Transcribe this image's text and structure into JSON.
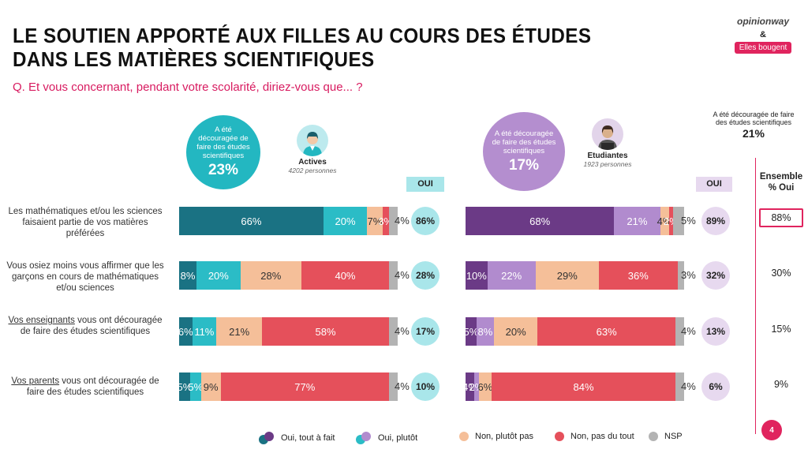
{
  "header": {
    "title": "LE SOUTIEN APPORTÉ AUX FILLES AU COURS DES ÉTUDES DANS LES MATIÈRES SCIENTIFIQUES",
    "question": "Q. Et vous concernant, pendant votre scolarité, diriez-vous que... ?",
    "brand_top": "opinionway",
    "brand_amp": "&",
    "brand_bottom": "Elles bougent",
    "page_number": "4"
  },
  "groups": {
    "actives": {
      "bubble_text": "A été découragée de faire des études scientifiques",
      "bubble_pct": "23%",
      "label": "Actives",
      "count": "4202 personnes",
      "oui_header": "OUI"
    },
    "etudiantes": {
      "bubble_text": "A été découragée de faire des études scientifiques",
      "bubble_pct": "17%",
      "label": "Etudiantes",
      "count": "1923 personnes",
      "oui_header": "OUI"
    }
  },
  "ensemble": {
    "stat_text": "A été découragée de faire des études scientifiques",
    "stat_value": "21%",
    "header": "Ensemble\n% Oui"
  },
  "colors": {
    "actives_tout": "#1a7283",
    "actives_plutot": "#2bbcc6",
    "etud_tout": "#6b3a86",
    "etud_plutot": "#b18bce",
    "non_plutot": "#f5bf99",
    "non_pas": "#e5505b",
    "nsp": "#b3b3b3",
    "actives_circle": "#a9e6ea",
    "etud_circle": "#e7d9ef",
    "accent": "#e0245e"
  },
  "legend": {
    "items": [
      {
        "label": "Oui, tout à fait",
        "colors": [
          "#1a7283",
          "#6b3a86"
        ]
      },
      {
        "label": "Oui, plutôt",
        "colors": [
          "#2bbcc6",
          "#b18bce"
        ]
      },
      {
        "label": "Non, plutôt pas",
        "colors": [
          "#f5bf99"
        ]
      },
      {
        "label": "Non, pas du tout",
        "colors": [
          "#e5505b"
        ]
      },
      {
        "label": "NSP",
        "colors": [
          "#b3b3b3"
        ]
      }
    ]
  },
  "rows": [
    {
      "pre_underline": "",
      "underline": "",
      "label": "Les mathématiques et/ou les sciences faisaient partie de vos matières préférées"
    },
    {
      "pre_underline": "",
      "underline": "",
      "label": "Vous osiez moins vous affirmer que les garçons en cours de mathématiques et/ou sciences"
    },
    {
      "pre_underline": "",
      "underline": "Vos enseignants",
      "label": " vous ont découragée de faire des études scientifiques"
    },
    {
      "pre_underline": "",
      "underline": "Vos parents",
      "label": " vous ont découragée de faire des études scientifiques"
    }
  ],
  "chart_data": {
    "type": "bar",
    "subtype": "stacked-horizontal-100",
    "categories": [
      "Les mathématiques et/ou les sciences faisaient partie de vos matières préférées",
      "Vous osiez moins vous affirmer que les garçons en cours de mathématiques et/ou sciences",
      "Vos enseignants vous ont découragée de faire des études scientifiques",
      "Vos parents vous ont découragée de faire des études scientifiques"
    ],
    "segments": [
      "Oui, tout à fait",
      "Oui, plutôt",
      "Non, plutôt pas",
      "Non, pas du tout",
      "NSP"
    ],
    "groups": [
      {
        "name": "Actives",
        "rows": [
          {
            "values": [
              66,
              20,
              7,
              3,
              4
            ],
            "labels": [
              "66%",
              "20%",
              "7%",
              "3%",
              "4%"
            ],
            "oui": "86%"
          },
          {
            "values": [
              8,
              20,
              28,
              40,
              4
            ],
            "labels": [
              "8%",
              "20%",
              "28%",
              "40%",
              "4%"
            ],
            "oui": "28%"
          },
          {
            "values": [
              6,
              11,
              21,
              58,
              4
            ],
            "labels": [
              "6%",
              "11%",
              "21%",
              "58%",
              "4%"
            ],
            "oui": "17%"
          },
          {
            "values": [
              5,
              5,
              9,
              77,
              4
            ],
            "labels": [
              "5%",
              "5%",
              "9%",
              "77%",
              "4%"
            ],
            "oui": "10%"
          }
        ]
      },
      {
        "name": "Etudiantes",
        "rows": [
          {
            "values": [
              68,
              21,
              4,
              2,
              5
            ],
            "labels": [
              "68%",
              "21%",
              "4%",
              "2%",
              "5%"
            ],
            "oui": "89%"
          },
          {
            "values": [
              10,
              22,
              29,
              36,
              3
            ],
            "labels": [
              "10%",
              "22%",
              "29%",
              "36%",
              "3%"
            ],
            "oui": "32%"
          },
          {
            "values": [
              5,
              8,
              20,
              63,
              4
            ],
            "labels": [
              "5%",
              "8%",
              "20%",
              "63%",
              "4%"
            ],
            "oui": "13%"
          },
          {
            "values": [
              4,
              2,
              6,
              84,
              4
            ],
            "labels": [
              "4%",
              "2%",
              "6%",
              "84%",
              "4%"
            ],
            "oui": "6%"
          }
        ]
      }
    ],
    "ensemble_oui": [
      "88%",
      "30%",
      "15%",
      "9%"
    ]
  }
}
